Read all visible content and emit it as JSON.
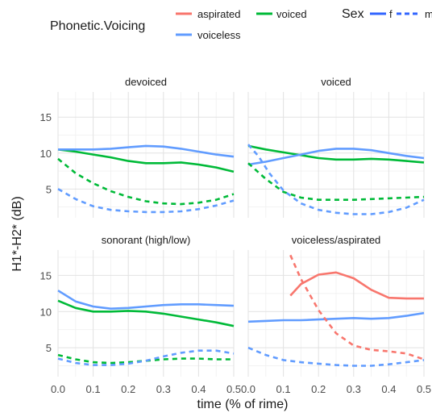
{
  "chart_data": {
    "type": "line",
    "facet_type": "wrap",
    "grid": true,
    "legend_position": "top",
    "xlabel": "time (% of rime)",
    "ylabel": "H1*-H2* (dB)",
    "xlim": [
      0.0,
      0.5
    ],
    "ylim": [
      1.0,
      18.5
    ],
    "x_ticks": [
      0.0,
      0.1,
      0.2,
      0.3,
      0.4,
      0.5
    ],
    "x_tick_labels": [
      "0.0",
      "0.1",
      "0.2",
      "0.3",
      "0.4",
      "0.5"
    ],
    "y_ticks": [
      5,
      10,
      15
    ],
    "y_tick_labels": [
      "5",
      "10",
      "15"
    ],
    "legend": {
      "color_title": "Phonetic.Voicing",
      "color_entries": [
        {
          "label": "aspirated",
          "color": "#F8766D"
        },
        {
          "label": "voiced",
          "color": "#00BA38"
        },
        {
          "label": "voiceless",
          "color": "#619CFF"
        }
      ],
      "linetype_title": "Sex",
      "linetype_entries": [
        {
          "label": "f",
          "linetype": "solid"
        },
        {
          "label": "m",
          "linetype": "dashed"
        }
      ]
    },
    "panels": [
      {
        "title": "devoiced",
        "series": [
          {
            "voicing": "voiced",
            "sex": "f",
            "x": [
              0.0,
              0.05,
              0.1,
              0.15,
              0.2,
              0.25,
              0.3,
              0.35,
              0.4,
              0.45,
              0.5
            ],
            "y": [
              10.5,
              10.2,
              9.8,
              9.4,
              8.9,
              8.6,
              8.6,
              8.7,
              8.4,
              8.0,
              7.4
            ]
          },
          {
            "voicing": "voiceless",
            "sex": "f",
            "x": [
              0.0,
              0.05,
              0.1,
              0.15,
              0.2,
              0.25,
              0.3,
              0.35,
              0.4,
              0.45,
              0.5
            ],
            "y": [
              10.5,
              10.5,
              10.5,
              10.6,
              10.8,
              11.0,
              10.9,
              10.6,
              10.2,
              9.8,
              9.5
            ]
          },
          {
            "voicing": "voiced",
            "sex": "m",
            "x": [
              0.0,
              0.05,
              0.1,
              0.15,
              0.2,
              0.25,
              0.3,
              0.35,
              0.4,
              0.45,
              0.5
            ],
            "y": [
              9.2,
              7.2,
              5.8,
              4.7,
              3.9,
              3.3,
              3.0,
              2.9,
              3.1,
              3.5,
              4.3
            ]
          },
          {
            "voicing": "voiceless",
            "sex": "m",
            "x": [
              0.0,
              0.05,
              0.1,
              0.15,
              0.2,
              0.25,
              0.3,
              0.35,
              0.4,
              0.45,
              0.5
            ],
            "y": [
              5.0,
              3.6,
              2.6,
              2.1,
              1.9,
              1.8,
              1.8,
              1.9,
              2.2,
              2.7,
              3.4
            ]
          }
        ]
      },
      {
        "title": "voiced",
        "series": [
          {
            "voicing": "voiced",
            "sex": "f",
            "x": [
              0.0,
              0.05,
              0.1,
              0.15,
              0.2,
              0.25,
              0.3,
              0.35,
              0.4,
              0.45,
              0.5
            ],
            "y": [
              11.0,
              10.5,
              10.1,
              9.7,
              9.3,
              9.1,
              9.1,
              9.2,
              9.1,
              8.9,
              8.7
            ]
          },
          {
            "voicing": "voiceless",
            "sex": "f",
            "x": [
              0.0,
              0.05,
              0.1,
              0.15,
              0.2,
              0.25,
              0.3,
              0.35,
              0.4,
              0.45,
              0.5
            ],
            "y": [
              8.4,
              8.8,
              9.3,
              9.8,
              10.3,
              10.6,
              10.6,
              10.4,
              10.0,
              9.6,
              9.3
            ]
          },
          {
            "voicing": "voiced",
            "sex": "m",
            "x": [
              0.0,
              0.05,
              0.1,
              0.15,
              0.2,
              0.25,
              0.3,
              0.35,
              0.4,
              0.45,
              0.5
            ],
            "y": [
              8.6,
              6.4,
              4.6,
              3.8,
              3.5,
              3.5,
              3.5,
              3.6,
              3.7,
              3.8,
              3.9
            ]
          },
          {
            "voicing": "voiceless",
            "sex": "m",
            "x": [
              0.0,
              0.03,
              0.06,
              0.1,
              0.15,
              0.2,
              0.25,
              0.3,
              0.35,
              0.4,
              0.45,
              0.5
            ],
            "y": [
              11.2,
              9.5,
              7.2,
              4.8,
              3.0,
              2.1,
              1.7,
              1.5,
              1.5,
              1.8,
              2.4,
              3.5
            ]
          }
        ]
      },
      {
        "title": "sonorant (high/low)",
        "series": [
          {
            "voicing": "voiced",
            "sex": "f",
            "x": [
              0.0,
              0.05,
              0.1,
              0.15,
              0.2,
              0.25,
              0.3,
              0.35,
              0.4,
              0.45,
              0.5
            ],
            "y": [
              11.5,
              10.5,
              10.0,
              10.0,
              10.1,
              10.0,
              9.7,
              9.3,
              8.9,
              8.5,
              8.0
            ]
          },
          {
            "voicing": "voiceless",
            "sex": "f",
            "x": [
              0.0,
              0.05,
              0.1,
              0.15,
              0.2,
              0.25,
              0.3,
              0.35,
              0.4,
              0.45,
              0.5
            ],
            "y": [
              12.9,
              11.4,
              10.7,
              10.4,
              10.5,
              10.7,
              10.9,
              11.0,
              11.0,
              10.9,
              10.8
            ]
          },
          {
            "voicing": "voiced",
            "sex": "m",
            "x": [
              0.0,
              0.05,
              0.1,
              0.15,
              0.2,
              0.25,
              0.3,
              0.35,
              0.4,
              0.45,
              0.5
            ],
            "y": [
              4.0,
              3.4,
              3.0,
              2.9,
              3.0,
              3.2,
              3.4,
              3.5,
              3.5,
              3.4,
              3.4
            ]
          },
          {
            "voicing": "voiceless",
            "sex": "m",
            "x": [
              0.0,
              0.05,
              0.1,
              0.15,
              0.2,
              0.25,
              0.3,
              0.35,
              0.4,
              0.45,
              0.5
            ],
            "y": [
              3.5,
              2.9,
              2.6,
              2.6,
              2.8,
              3.2,
              3.8,
              4.3,
              4.6,
              4.6,
              4.2
            ]
          }
        ]
      },
      {
        "title": "voiceless/aspirated",
        "series": [
          {
            "voicing": "aspirated",
            "sex": "f",
            "x": [
              0.12,
              0.15,
              0.2,
              0.25,
              0.3,
              0.35,
              0.4,
              0.45,
              0.5
            ],
            "y": [
              12.2,
              13.8,
              15.1,
              15.4,
              14.6,
              13.0,
              11.9,
              11.8,
              11.8
            ]
          },
          {
            "voicing": "voiceless",
            "sex": "f",
            "x": [
              0.0,
              0.05,
              0.1,
              0.15,
              0.2,
              0.25,
              0.3,
              0.35,
              0.4,
              0.45,
              0.5
            ],
            "y": [
              8.6,
              8.7,
              8.8,
              8.8,
              8.9,
              9.0,
              9.1,
              9.0,
              9.1,
              9.4,
              9.8
            ]
          },
          {
            "voicing": "aspirated",
            "sex": "m",
            "x": [
              0.12,
              0.15,
              0.2,
              0.25,
              0.3,
              0.35,
              0.4,
              0.45,
              0.5
            ],
            "y": [
              17.8,
              14.5,
              10.2,
              7.0,
              5.3,
              4.7,
              4.5,
              4.2,
              3.4
            ]
          },
          {
            "voicing": "voiceless",
            "sex": "m",
            "x": [
              0.0,
              0.05,
              0.1,
              0.15,
              0.2,
              0.25,
              0.3,
              0.35,
              0.4,
              0.45,
              0.5
            ],
            "y": [
              5.0,
              4.0,
              3.3,
              3.0,
              2.8,
              2.6,
              2.5,
              2.5,
              2.7,
              3.0,
              3.3
            ]
          }
        ]
      }
    ]
  }
}
